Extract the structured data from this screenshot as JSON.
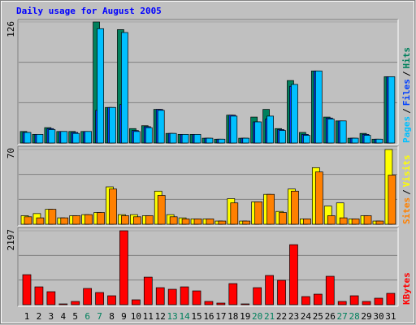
{
  "chart_data": [
    {
      "type": "bar",
      "title": "Daily usage for August 2005",
      "legend_separator": "/",
      "ylim": [
        0,
        126
      ],
      "yticks": [
        126
      ],
      "series": [
        {
          "name": "Hits",
          "color": "#00805C",
          "values": [
            12,
            9,
            16,
            12,
            12,
            12,
            126,
            37,
            118,
            15,
            18,
            35,
            10,
            9,
            9,
            5,
            4,
            29,
            5,
            27,
            35,
            15,
            65,
            11,
            75,
            27,
            23,
            5,
            10,
            4,
            69
          ]
        },
        {
          "name": "Files",
          "color": "#0040FF",
          "values": [
            11,
            9,
            15,
            12,
            11,
            12,
            34,
            37,
            40,
            13,
            17,
            35,
            10,
            9,
            9,
            5,
            4,
            29,
            5,
            22,
            25,
            14,
            59,
            9,
            75,
            26,
            23,
            5,
            9,
            4,
            69
          ]
        },
        {
          "name": "Pages",
          "color": "#00C0FF",
          "values": [
            11,
            9,
            14,
            12,
            10,
            12,
            119,
            37,
            115,
            12,
            16,
            34,
            10,
            9,
            9,
            5,
            4,
            28,
            5,
            22,
            28,
            13,
            61,
            8,
            75,
            25,
            23,
            5,
            8,
            4,
            69
          ]
        }
      ]
    },
    {
      "type": "bar",
      "legend_separator": "/",
      "ylim": [
        0,
        70
      ],
      "yticks": [
        70
      ],
      "series": [
        {
          "name": "Visits",
          "color": "#FFFF00",
          "values": [
            8,
            10,
            14,
            6,
            8,
            9,
            11,
            35,
            9,
            9,
            8,
            31,
            9,
            6,
            5,
            5,
            3,
            24,
            3,
            21,
            28,
            12,
            33,
            5,
            53,
            17,
            20,
            5,
            8,
            3,
            70
          ]
        },
        {
          "name": "Sites",
          "color": "#FF8000",
          "values": [
            7,
            6,
            14,
            6,
            8,
            9,
            11,
            33,
            8,
            7,
            8,
            27,
            7,
            5,
            5,
            5,
            3,
            20,
            3,
            21,
            28,
            11,
            31,
            5,
            49,
            8,
            6,
            5,
            8,
            3,
            46
          ]
        }
      ]
    },
    {
      "type": "bar",
      "ylim": [
        0,
        2197
      ],
      "yticks": [
        2197
      ],
      "categories": [
        "1",
        "2",
        "3",
        "4",
        "5",
        "6",
        "7",
        "8",
        "9",
        "10",
        "11",
        "12",
        "13",
        "14",
        "15",
        "16",
        "17",
        "18",
        "19",
        "20",
        "21",
        "22",
        "23",
        "24",
        "25",
        "26",
        "27",
        "28",
        "29",
        "30",
        "31"
      ],
      "category_colors": [
        "#000",
        "#000",
        "#000",
        "#000",
        "#000",
        "#00805C",
        "#00805C",
        "#000",
        "#000",
        "#000",
        "#000",
        "#000",
        "#00805C",
        "#00805C",
        "#000",
        "#000",
        "#000",
        "#000",
        "#000",
        "#00805C",
        "#00805C",
        "#000",
        "#000",
        "#000",
        "#000",
        "#000",
        "#00805C",
        "#00805C",
        "#000",
        "#000",
        "#000"
      ],
      "series": [
        {
          "name": "KBytes",
          "color": "#FF0000",
          "values": [
            892,
            530,
            386,
            24,
            96,
            482,
            362,
            265,
            2197,
            145,
            819,
            506,
            458,
            530,
            410,
            96,
            48,
            627,
            24,
            506,
            868,
            724,
            1783,
            241,
            313,
            844,
            96,
            265,
            96,
            193,
            337
          ]
        }
      ]
    }
  ]
}
